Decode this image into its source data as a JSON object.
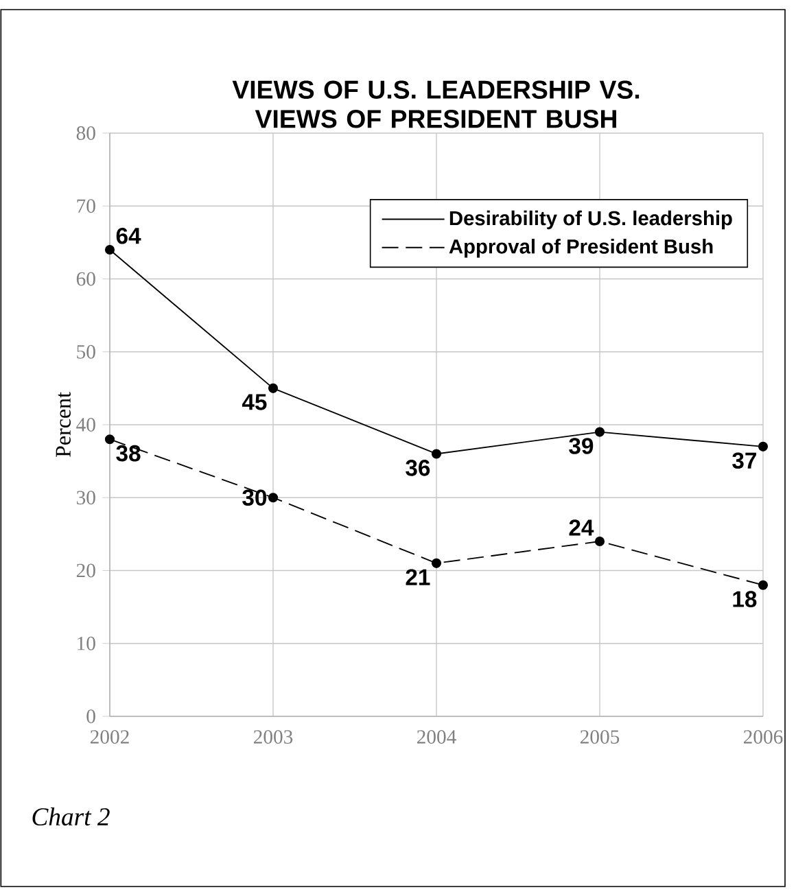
{
  "chart_data": {
    "type": "line",
    "title": "VIEWS OF U.S. LEADERSHIP VS. VIEWS OF PRESIDENT BUSH",
    "ylabel": "Percent",
    "x": [
      2002,
      2003,
      2004,
      2005,
      2006
    ],
    "series": [
      {
        "name": "Desirability of U.S. leadership",
        "color": "#000000",
        "line_style": "solid",
        "values": [
          64,
          45,
          36,
          39,
          37
        ]
      },
      {
        "name": "Approval of President Bush",
        "color": "#000000",
        "line_style": "dashed",
        "values": [
          38,
          30,
          21,
          24,
          18
        ]
      }
    ],
    "xlim": [
      2002,
      2006
    ],
    "xticks": [
      2002,
      2003,
      2004,
      2005,
      2006
    ],
    "ylim": [
      0,
      80
    ],
    "yticks": [
      0,
      10,
      20,
      30,
      40,
      50,
      60,
      70,
      80
    ],
    "grid": true,
    "legend": "top right",
    "marker": "circle",
    "data_labels": true,
    "annotations": [
      "Chart 2"
    ]
  }
}
